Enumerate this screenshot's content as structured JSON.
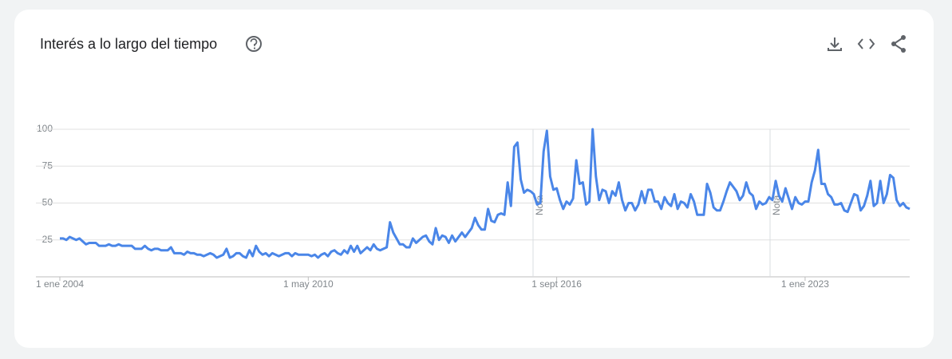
{
  "chart_data": {
    "type": "line",
    "title": "Interés a lo largo del tiempo",
    "categories": [
      "1 ene 2004",
      null,
      null,
      null,
      null,
      null,
      null,
      null,
      null,
      null,
      null,
      null,
      null,
      null,
      null,
      null,
      null,
      null,
      null,
      null,
      null,
      null,
      null,
      null,
      null,
      null,
      null,
      null,
      null,
      null,
      null,
      null,
      null,
      null,
      null,
      null,
      null,
      null,
      null,
      null,
      null,
      null,
      null,
      null,
      null,
      null,
      null,
      null,
      null,
      null,
      null,
      null,
      null,
      null,
      null,
      null,
      null,
      null,
      null,
      null,
      null,
      null,
      null,
      null,
      null,
      null,
      null,
      null,
      null,
      null,
      null,
      null,
      null,
      null,
      null,
      null,
      "1 may 2010",
      null,
      null,
      null,
      null,
      null,
      null,
      null,
      null,
      null,
      null,
      null,
      null,
      null,
      null,
      null,
      null,
      null,
      null,
      null,
      null,
      null,
      null,
      null,
      null,
      null,
      null,
      null,
      null,
      null,
      null,
      null,
      null,
      null,
      null,
      null,
      null,
      null,
      null,
      null,
      null,
      null,
      null,
      null,
      null,
      null,
      null,
      null,
      null,
      null,
      null,
      null,
      null,
      null,
      null,
      null,
      null,
      null,
      null,
      null,
      null,
      null,
      null,
      null,
      null,
      null,
      null,
      null,
      null,
      null,
      null,
      null,
      null,
      null,
      null,
      null,
      "1 sept 2016",
      null,
      null,
      null,
      null,
      null,
      null,
      null,
      null,
      null,
      null,
      null,
      null,
      null,
      null,
      null,
      null,
      null,
      null,
      null,
      null,
      null,
      null,
      null,
      null,
      null,
      null,
      null,
      null,
      null,
      null,
      null,
      null,
      null,
      null,
      null,
      null,
      null,
      null,
      null,
      null,
      null,
      null,
      null,
      null,
      null,
      null,
      null,
      null,
      null,
      null,
      null,
      null,
      null,
      null,
      null,
      null,
      null,
      null,
      null,
      null,
      null,
      null,
      null,
      null,
      null,
      null,
      null,
      null,
      null,
      null,
      null,
      null,
      null,
      null,
      null,
      "1 ene 2023",
      null,
      null,
      null,
      null,
      null,
      null,
      null,
      null,
      null,
      null,
      null,
      null,
      null,
      null,
      null,
      null,
      null,
      null,
      null,
      null,
      null,
      null,
      null,
      null,
      null,
      null,
      null,
      null,
      null,
      null,
      null,
      null
    ],
    "values": [
      26,
      26,
      25,
      27,
      26,
      25,
      26,
      24,
      22,
      23,
      23,
      23,
      21,
      21,
      21,
      22,
      21,
      21,
      22,
      21,
      21,
      21,
      21,
      19,
      19,
      19,
      21,
      19,
      18,
      19,
      19,
      18,
      18,
      18,
      20,
      16,
      16,
      16,
      15,
      17,
      16,
      16,
      15,
      15,
      14,
      15,
      16,
      15,
      13,
      14,
      15,
      19,
      13,
      14,
      16,
      16,
      14,
      13,
      18,
      14,
      21,
      17,
      15,
      16,
      14,
      16,
      15,
      14,
      15,
      16,
      16,
      14,
      16,
      15,
      15,
      15,
      15,
      14,
      15,
      13,
      15,
      16,
      14,
      17,
      18,
      16,
      15,
      18,
      16,
      21,
      17,
      21,
      16,
      18,
      20,
      18,
      22,
      19,
      18,
      19,
      20,
      37,
      30,
      26,
      22,
      22,
      20,
      20,
      26,
      23,
      25,
      27,
      28,
      24,
      22,
      33,
      25,
      28,
      27,
      23,
      28,
      24,
      27,
      30,
      27,
      30,
      33,
      40,
      35,
      32,
      32,
      46,
      38,
      37,
      42,
      43,
      42,
      64,
      48,
      88,
      91,
      66,
      57,
      59,
      58,
      56,
      49,
      50,
      85,
      99,
      68,
      59,
      60,
      52,
      46,
      51,
      49,
      53,
      79,
      63,
      64,
      49,
      51,
      100,
      68,
      52,
      59,
      58,
      50,
      58,
      55,
      64,
      52,
      45,
      50,
      50,
      45,
      49,
      58,
      50,
      59,
      59,
      51,
      51,
      46,
      54,
      50,
      48,
      56,
      46,
      51,
      50,
      47,
      56,
      51,
      42,
      42,
      42,
      63,
      57,
      47,
      45,
      45,
      51,
      58,
      64,
      61,
      58,
      52,
      55,
      64,
      57,
      55,
      46,
      51,
      49,
      50,
      54,
      52,
      65,
      55,
      51,
      60,
      53,
      46,
      54,
      50,
      49,
      51,
      51,
      64,
      72,
      86,
      63,
      63,
      56,
      54,
      49,
      49,
      50,
      45,
      44,
      50,
      56,
      55,
      45,
      48,
      55,
      65,
      48,
      50,
      65,
      50,
      56,
      69,
      67,
      52,
      48,
      50,
      47,
      46
    ],
    "color": "#4a86e8",
    "ylim": [
      0,
      100
    ],
    "yticks": [
      25,
      50,
      75,
      100
    ],
    "grid": true,
    "annotations": [
      "Nota",
      "Nota"
    ]
  }
}
